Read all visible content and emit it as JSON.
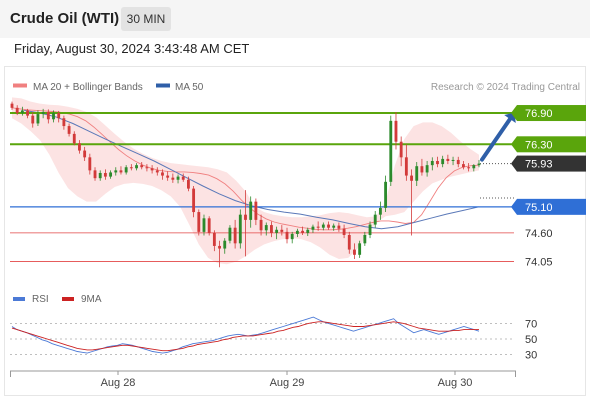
{
  "header": {
    "title": "Crude Oil (WTI)",
    "timeframe": "30 MIN"
  },
  "timestamp": "Friday, August 30, 2024 3:43:48 AM CET",
  "legend": {
    "bollinger": "MA 20 + Bollinger Bands",
    "ma50": "MA 50",
    "copyright": "Research © 2024 Trading Central"
  },
  "rsi_legend": {
    "rsi": "RSI",
    "ma": "9MA"
  },
  "x_labels": [
    "Aug 28",
    "Aug 29",
    "Aug 30"
  ],
  "colors": {
    "green": "#5aa50c",
    "blue": "#2f6fd6",
    "red": "#e24444",
    "dark": "#333333",
    "bollinger": "#fbd9d9",
    "arrow": "#2f5fa8",
    "ma20": "#f08080",
    "ma50": "#5a78b8",
    "rsi": "#4c7ad6",
    "rsi_ma": "#cc2222",
    "candle_up": "#2c8a2c",
    "candle_down": "#d23a3a"
  },
  "chart_data": {
    "type": "candlestick",
    "y_range": [
      73.85,
      77.15
    ],
    "price_levels": [
      {
        "value": 76.9,
        "label": "76.90",
        "kind": "resistance"
      },
      {
        "value": 76.3,
        "label": "76.30",
        "kind": "resistance"
      },
      {
        "value": 75.93,
        "label": "75.93",
        "kind": "last_price"
      },
      {
        "value": 75.1,
        "label": "75.10",
        "kind": "pivot"
      },
      {
        "value": 74.6,
        "label": "74.60",
        "kind": "support"
      },
      {
        "value": 74.05,
        "label": "74.05",
        "kind": "support"
      }
    ],
    "arrow": {
      "from": 75.93,
      "to": 76.9,
      "direction": "up"
    },
    "candles": [
      {
        "o": 77.08,
        "h": 77.12,
        "l": 76.96,
        "c": 77.0
      },
      {
        "o": 77.0,
        "h": 77.05,
        "l": 76.86,
        "c": 76.9
      },
      {
        "o": 76.9,
        "h": 77.02,
        "l": 76.85,
        "c": 76.95
      },
      {
        "o": 76.95,
        "h": 76.98,
        "l": 76.8,
        "c": 76.85
      },
      {
        "o": 76.85,
        "h": 76.92,
        "l": 76.62,
        "c": 76.7
      },
      {
        "o": 76.7,
        "h": 76.95,
        "l": 76.65,
        "c": 76.88
      },
      {
        "o": 76.88,
        "h": 76.98,
        "l": 76.8,
        "c": 76.92
      },
      {
        "o": 76.92,
        "h": 76.97,
        "l": 76.7,
        "c": 76.78
      },
      {
        "o": 76.78,
        "h": 76.95,
        "l": 76.72,
        "c": 76.9
      },
      {
        "o": 76.9,
        "h": 76.94,
        "l": 76.72,
        "c": 76.8
      },
      {
        "o": 76.8,
        "h": 76.85,
        "l": 76.58,
        "c": 76.65
      },
      {
        "o": 76.65,
        "h": 76.7,
        "l": 76.45,
        "c": 76.5
      },
      {
        "o": 76.5,
        "h": 76.55,
        "l": 76.28,
        "c": 76.32
      },
      {
        "o": 76.32,
        "h": 76.38,
        "l": 76.12,
        "c": 76.18
      },
      {
        "o": 76.18,
        "h": 76.25,
        "l": 75.98,
        "c": 76.05
      },
      {
        "o": 76.05,
        "h": 76.12,
        "l": 75.72,
        "c": 75.8
      },
      {
        "o": 75.8,
        "h": 75.86,
        "l": 75.6,
        "c": 75.65
      },
      {
        "o": 75.65,
        "h": 75.8,
        "l": 75.6,
        "c": 75.75
      },
      {
        "o": 75.75,
        "h": 75.82,
        "l": 75.62,
        "c": 75.68
      },
      {
        "o": 75.68,
        "h": 75.8,
        "l": 75.64,
        "c": 75.76
      },
      {
        "o": 75.76,
        "h": 75.86,
        "l": 75.7,
        "c": 75.8
      },
      {
        "o": 75.8,
        "h": 75.88,
        "l": 75.72,
        "c": 75.76
      },
      {
        "o": 75.76,
        "h": 75.9,
        "l": 75.72,
        "c": 75.86
      },
      {
        "o": 75.86,
        "h": 75.92,
        "l": 75.8,
        "c": 75.84
      },
      {
        "o": 75.84,
        "h": 75.94,
        "l": 75.8,
        "c": 75.9
      },
      {
        "o": 75.9,
        "h": 75.96,
        "l": 75.82,
        "c": 75.86
      },
      {
        "o": 75.86,
        "h": 75.92,
        "l": 75.78,
        "c": 75.84
      },
      {
        "o": 75.84,
        "h": 75.9,
        "l": 75.74,
        "c": 75.8
      },
      {
        "o": 75.8,
        "h": 75.86,
        "l": 75.7,
        "c": 75.76
      },
      {
        "o": 75.76,
        "h": 75.82,
        "l": 75.62,
        "c": 75.7
      },
      {
        "o": 75.7,
        "h": 75.78,
        "l": 75.6,
        "c": 75.66
      },
      {
        "o": 75.66,
        "h": 75.74,
        "l": 75.56,
        "c": 75.62
      },
      {
        "o": 75.62,
        "h": 75.72,
        "l": 75.55,
        "c": 75.68
      },
      {
        "o": 75.68,
        "h": 75.74,
        "l": 75.58,
        "c": 75.62
      },
      {
        "o": 75.62,
        "h": 75.68,
        "l": 75.4,
        "c": 75.45
      },
      {
        "o": 75.45,
        "h": 75.5,
        "l": 74.9,
        "c": 75.0
      },
      {
        "o": 75.0,
        "h": 75.05,
        "l": 74.55,
        "c": 74.62
      },
      {
        "o": 74.62,
        "h": 74.95,
        "l": 74.55,
        "c": 74.88
      },
      {
        "o": 74.88,
        "h": 74.92,
        "l": 74.55,
        "c": 74.6
      },
      {
        "o": 74.6,
        "h": 74.65,
        "l": 74.25,
        "c": 74.35
      },
      {
        "o": 74.35,
        "h": 74.45,
        "l": 73.94,
        "c": 74.3
      },
      {
        "o": 74.3,
        "h": 74.5,
        "l": 74.2,
        "c": 74.45
      },
      {
        "o": 74.45,
        "h": 74.75,
        "l": 74.4,
        "c": 74.7
      },
      {
        "o": 74.7,
        "h": 74.85,
        "l": 74.3,
        "c": 74.4
      },
      {
        "o": 74.4,
        "h": 75.05,
        "l": 74.3,
        "c": 74.95
      },
      {
        "o": 74.95,
        "h": 75.42,
        "l": 74.15,
        "c": 74.85
      },
      {
        "o": 74.85,
        "h": 75.3,
        "l": 74.7,
        "c": 75.2
      },
      {
        "o": 75.2,
        "h": 75.26,
        "l": 74.75,
        "c": 74.85
      },
      {
        "o": 74.85,
        "h": 74.95,
        "l": 74.55,
        "c": 74.65
      },
      {
        "o": 74.65,
        "h": 74.8,
        "l": 74.55,
        "c": 74.75
      },
      {
        "o": 74.75,
        "h": 74.82,
        "l": 74.52,
        "c": 74.6
      },
      {
        "o": 74.6,
        "h": 74.72,
        "l": 74.48,
        "c": 74.66
      },
      {
        "o": 74.66,
        "h": 74.75,
        "l": 74.55,
        "c": 74.62
      },
      {
        "o": 74.62,
        "h": 74.7,
        "l": 74.4,
        "c": 74.48
      },
      {
        "o": 74.48,
        "h": 74.62,
        "l": 74.4,
        "c": 74.58
      },
      {
        "o": 74.58,
        "h": 74.68,
        "l": 74.52,
        "c": 74.64
      },
      {
        "o": 74.64,
        "h": 74.72,
        "l": 74.56,
        "c": 74.6
      },
      {
        "o": 74.6,
        "h": 74.7,
        "l": 74.54,
        "c": 74.66
      },
      {
        "o": 74.66,
        "h": 74.76,
        "l": 74.6,
        "c": 74.72
      },
      {
        "o": 74.72,
        "h": 74.82,
        "l": 74.64,
        "c": 74.7
      },
      {
        "o": 74.7,
        "h": 74.8,
        "l": 74.65,
        "c": 74.76
      },
      {
        "o": 74.76,
        "h": 74.82,
        "l": 74.66,
        "c": 74.7
      },
      {
        "o": 74.7,
        "h": 74.78,
        "l": 74.64,
        "c": 74.74
      },
      {
        "o": 74.74,
        "h": 74.8,
        "l": 74.62,
        "c": 74.68
      },
      {
        "o": 74.68,
        "h": 74.76,
        "l": 74.5,
        "c": 74.56
      },
      {
        "o": 74.56,
        "h": 74.62,
        "l": 74.2,
        "c": 74.28
      },
      {
        "o": 74.28,
        "h": 74.4,
        "l": 74.1,
        "c": 74.18
      },
      {
        "o": 74.18,
        "h": 74.45,
        "l": 74.12,
        "c": 74.4
      },
      {
        "o": 74.4,
        "h": 74.62,
        "l": 74.35,
        "c": 74.56
      },
      {
        "o": 74.56,
        "h": 74.82,
        "l": 74.5,
        "c": 74.76
      },
      {
        "o": 74.76,
        "h": 75.02,
        "l": 74.7,
        "c": 74.95
      },
      {
        "o": 74.95,
        "h": 75.2,
        "l": 74.85,
        "c": 75.08
      },
      {
        "o": 75.08,
        "h": 75.7,
        "l": 75.0,
        "c": 75.58
      },
      {
        "o": 75.58,
        "h": 76.85,
        "l": 75.5,
        "c": 76.75
      },
      {
        "o": 76.75,
        "h": 76.92,
        "l": 76.2,
        "c": 76.35
      },
      {
        "o": 76.35,
        "h": 76.45,
        "l": 75.88,
        "c": 76.05
      },
      {
        "o": 76.05,
        "h": 76.3,
        "l": 75.6,
        "c": 75.7
      },
      {
        "o": 75.7,
        "h": 75.82,
        "l": 74.55,
        "c": 75.6
      },
      {
        "o": 75.6,
        "h": 75.96,
        "l": 75.5,
        "c": 75.88
      },
      {
        "o": 75.88,
        "h": 76.02,
        "l": 75.7,
        "c": 75.76
      },
      {
        "o": 75.76,
        "h": 75.98,
        "l": 75.68,
        "c": 75.9
      },
      {
        "o": 75.9,
        "h": 76.05,
        "l": 75.8,
        "c": 75.98
      },
      {
        "o": 75.98,
        "h": 76.06,
        "l": 75.86,
        "c": 75.92
      },
      {
        "o": 75.92,
        "h": 76.08,
        "l": 75.86,
        "c": 76.02
      },
      {
        "o": 76.02,
        "h": 76.1,
        "l": 75.92,
        "c": 75.98
      },
      {
        "o": 75.98,
        "h": 76.06,
        "l": 75.9,
        "c": 76.0
      },
      {
        "o": 76.0,
        "h": 76.06,
        "l": 75.86,
        "c": 75.92
      },
      {
        "o": 75.92,
        "h": 75.98,
        "l": 75.82,
        "c": 75.86
      },
      {
        "o": 75.86,
        "h": 75.94,
        "l": 75.78,
        "c": 75.84
      },
      {
        "o": 75.84,
        "h": 75.92,
        "l": 75.78,
        "c": 75.9
      },
      {
        "o": 75.9,
        "h": 76.0,
        "l": 75.86,
        "c": 75.93
      }
    ],
    "ma20": [
      77.0,
      76.98,
      76.96,
      76.95,
      76.94,
      76.93,
      76.91,
      76.88,
      76.83,
      76.75,
      76.63,
      76.49,
      76.34,
      76.2,
      76.08,
      75.98,
      75.9,
      75.84,
      75.8,
      75.78,
      75.77,
      75.77,
      75.76,
      75.74,
      75.71,
      75.64,
      75.54,
      75.4,
      75.23,
      75.08,
      74.96,
      74.87,
      74.81,
      74.77,
      74.74,
      74.71,
      74.69,
      74.67,
      74.66,
      74.66,
      74.67,
      74.69,
      74.72,
      74.76,
      74.8,
      74.83,
      74.83,
      74.81,
      74.78,
      74.8,
      74.95,
      75.2,
      75.46,
      75.66,
      75.79,
      75.86,
      75.89,
      75.9
    ],
    "ma20_x": [
      0,
      2,
      4,
      6,
      8,
      10,
      12,
      14,
      16,
      18,
      20,
      22,
      24,
      26,
      28,
      30,
      32,
      34,
      36,
      38,
      40,
      42,
      44,
      46,
      48,
      50,
      52,
      54,
      56,
      58,
      60,
      62,
      64,
      66,
      68,
      70,
      72,
      74,
      76,
      78,
      80,
      82,
      84,
      86,
      88,
      90,
      92,
      94,
      96,
      98,
      100,
      102,
      104,
      106,
      108,
      110,
      112,
      114
    ],
    "bb_upper": [
      77.2,
      77.18,
      77.12,
      77.08,
      77.06,
      77.05,
      77.02,
      76.98,
      76.92,
      76.82,
      76.66,
      76.5,
      76.35,
      76.22,
      76.12,
      76.04,
      75.98,
      75.94,
      75.92,
      75.9,
      75.88,
      75.86,
      75.82,
      75.76,
      75.6,
      75.4,
      75.1,
      75.0,
      74.95,
      74.92,
      74.9,
      74.9,
      74.92,
      74.94,
      74.98,
      75.0,
      74.98,
      74.94,
      74.9,
      74.92,
      75.2,
      75.9,
      76.4,
      76.65,
      76.72,
      76.72,
      76.65,
      76.52,
      76.36,
      76.22,
      76.1
    ],
    "bb_lower": [
      76.8,
      76.7,
      76.55,
      76.38,
      76.1,
      75.75,
      75.46,
      75.3,
      75.2,
      75.2,
      75.35,
      75.48,
      75.54,
      75.56,
      75.54,
      75.5,
      75.42,
      75.3,
      75.1,
      74.75,
      74.38,
      74.12,
      74.02,
      74.0,
      74.05,
      74.15,
      74.28,
      74.38,
      74.44,
      74.48,
      74.5,
      74.48,
      74.42,
      74.32,
      74.18,
      74.1,
      74.12,
      74.3,
      74.55,
      74.8,
      74.92,
      74.95,
      75.0,
      75.2,
      75.4,
      75.55,
      75.62,
      75.68,
      75.72,
      75.76,
      75.8
    ],
    "bb_x": [
      0,
      3,
      6,
      9,
      12,
      15,
      18,
      21,
      24,
      27,
      30,
      33,
      36,
      39,
      42,
      45,
      48,
      51,
      54,
      57,
      60,
      63,
      66,
      69,
      72,
      75,
      78,
      81,
      84,
      87,
      90,
      93,
      96,
      99,
      102,
      105,
      108,
      111,
      114,
      117,
      120,
      123,
      126,
      129,
      132,
      135,
      138,
      141,
      144,
      147,
      150
    ],
    "ma50": [
      76.95,
      76.9,
      76.82,
      76.7,
      76.55,
      76.4,
      76.26,
      76.12,
      75.98,
      75.82,
      75.66,
      75.5,
      75.35,
      75.22,
      75.12,
      75.05,
      75.0,
      74.96,
      74.9,
      74.85,
      74.78,
      74.72,
      74.68,
      74.72,
      74.8,
      74.88,
      74.96,
      75.03,
      75.1
    ],
    "ma50_x": [
      3,
      7,
      11,
      15,
      19,
      23,
      27,
      31,
      35,
      39,
      43,
      47,
      51,
      55,
      59,
      63,
      67,
      71,
      75,
      79,
      83,
      87,
      91,
      95,
      99,
      103,
      107,
      111,
      115
    ],
    "rsi": {
      "y_ticks": [
        70,
        50,
        30
      ],
      "y_range": [
        18,
        82
      ],
      "rsi_values": [
        66,
        62,
        60,
        58,
        55,
        52,
        49,
        47,
        44,
        42,
        40,
        38,
        36,
        34,
        33,
        32,
        34,
        36,
        38,
        40,
        41,
        42,
        44,
        43,
        42,
        40,
        38,
        36,
        34,
        33,
        32,
        33,
        35,
        37,
        40,
        42,
        44,
        45,
        46,
        47,
        48,
        50,
        52,
        54,
        55,
        56,
        55,
        54,
        55,
        56,
        58,
        60,
        62,
        64,
        66,
        68,
        70,
        72,
        74,
        76,
        78,
        75,
        72,
        70,
        68,
        66,
        64,
        62,
        60,
        62,
        64,
        66,
        68,
        70,
        72,
        74,
        76,
        70,
        66,
        62,
        58,
        60,
        62,
        60,
        58,
        56,
        58,
        60,
        62,
        64,
        66,
        64,
        62,
        60
      ],
      "ma9_values": [
        64,
        62,
        60,
        58,
        56,
        54,
        52,
        50,
        48,
        46,
        44,
        42,
        40,
        38,
        37,
        36,
        36,
        37,
        38,
        39,
        40,
        41,
        42,
        42,
        41,
        40,
        39,
        38,
        37,
        36,
        35,
        35,
        36,
        37,
        38,
        40,
        41,
        43,
        44,
        45,
        46,
        47,
        49,
        50,
        52,
        53,
        54,
        54,
        54,
        55,
        56,
        57,
        58,
        60,
        61,
        63,
        65,
        66,
        68,
        70,
        71,
        72,
        72,
        71,
        70,
        69,
        68,
        67,
        66,
        66,
        66,
        67,
        68,
        69,
        70,
        71,
        72,
        71,
        70,
        68,
        66,
        64,
        63,
        62,
        61,
        60,
        60,
        60,
        61,
        61,
        62,
        62,
        62,
        62
      ]
    }
  }
}
